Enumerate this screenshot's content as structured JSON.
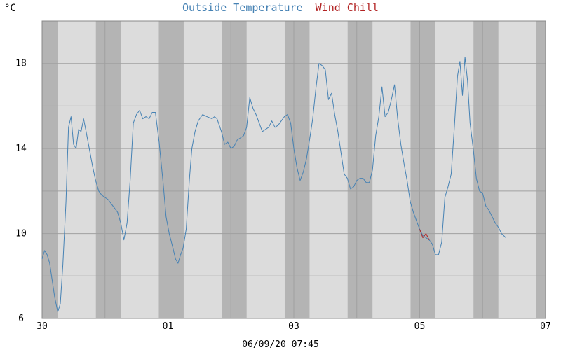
{
  "chart_data": {
    "type": "line",
    "title_parts": [
      {
        "text": "Outside Temperature",
        "color": "#4682b4"
      },
      {
        "text": "Wind Chill",
        "color": "#b22222"
      }
    ],
    "y_unit_label": "°C",
    "x_tick_labels": [
      "30",
      "01",
      "03",
      "05",
      "07"
    ],
    "y_tick_labels": [
      "6",
      "10",
      "14",
      "18"
    ],
    "ylim": [
      6,
      20
    ],
    "y_gridlines": [
      6,
      8,
      10,
      12,
      14,
      16,
      18
    ],
    "footer": "06/09/20 07:45",
    "grid": true,
    "colors": {
      "plot_background": "#dcdcdc",
      "night_band": "#b4b4b4",
      "gridline": "#a0a0a0",
      "outside_temperature": "#4682b4",
      "wind_chill": "#b22222"
    },
    "series": [
      {
        "name": "Outside Temperature",
        "color": "#4682b4",
        "points": [
          [
            0.0,
            8.8
          ],
          [
            0.04,
            9.2
          ],
          [
            0.08,
            9.0
          ],
          [
            0.12,
            8.6
          ],
          [
            0.16,
            7.8
          ],
          [
            0.2,
            7.0
          ],
          [
            0.25,
            6.3
          ],
          [
            0.29,
            6.7
          ],
          [
            0.33,
            8.5
          ],
          [
            0.38,
            11.5
          ],
          [
            0.42,
            15.0
          ],
          [
            0.46,
            15.5
          ],
          [
            0.5,
            14.2
          ],
          [
            0.54,
            14.0
          ],
          [
            0.58,
            14.9
          ],
          [
            0.62,
            14.8
          ],
          [
            0.66,
            15.4
          ],
          [
            0.7,
            14.8
          ],
          [
            0.75,
            14.0
          ],
          [
            0.8,
            13.2
          ],
          [
            0.85,
            12.5
          ],
          [
            0.9,
            12.0
          ],
          [
            0.95,
            11.8
          ],
          [
            1.0,
            11.7
          ],
          [
            1.05,
            11.6
          ],
          [
            1.1,
            11.4
          ],
          [
            1.15,
            11.2
          ],
          [
            1.2,
            11.0
          ],
          [
            1.25,
            10.5
          ],
          [
            1.3,
            9.7
          ],
          [
            1.35,
            10.5
          ],
          [
            1.4,
            12.5
          ],
          [
            1.45,
            15.2
          ],
          [
            1.5,
            15.6
          ],
          [
            1.55,
            15.8
          ],
          [
            1.6,
            15.4
          ],
          [
            1.65,
            15.5
          ],
          [
            1.7,
            15.4
          ],
          [
            1.75,
            15.7
          ],
          [
            1.8,
            15.7
          ],
          [
            1.86,
            14.3
          ],
          [
            1.92,
            12.5
          ],
          [
            1.97,
            10.8
          ],
          [
            2.02,
            10.0
          ],
          [
            2.08,
            9.3
          ],
          [
            2.12,
            8.8
          ],
          [
            2.16,
            8.6
          ],
          [
            2.2,
            9.0
          ],
          [
            2.24,
            9.3
          ],
          [
            2.29,
            10.2
          ],
          [
            2.34,
            12.5
          ],
          [
            2.38,
            14.0
          ],
          [
            2.43,
            14.8
          ],
          [
            2.48,
            15.3
          ],
          [
            2.55,
            15.6
          ],
          [
            2.62,
            15.5
          ],
          [
            2.7,
            15.4
          ],
          [
            2.74,
            15.5
          ],
          [
            2.78,
            15.4
          ],
          [
            2.85,
            14.8
          ],
          [
            2.9,
            14.2
          ],
          [
            2.95,
            14.3
          ],
          [
            3.0,
            14.0
          ],
          [
            3.05,
            14.1
          ],
          [
            3.1,
            14.4
          ],
          [
            3.15,
            14.5
          ],
          [
            3.2,
            14.6
          ],
          [
            3.25,
            15.0
          ],
          [
            3.3,
            16.4
          ],
          [
            3.35,
            15.9
          ],
          [
            3.4,
            15.6
          ],
          [
            3.45,
            15.2
          ],
          [
            3.5,
            14.8
          ],
          [
            3.55,
            14.9
          ],
          [
            3.6,
            15.0
          ],
          [
            3.65,
            15.3
          ],
          [
            3.7,
            15.0
          ],
          [
            3.75,
            15.1
          ],
          [
            3.8,
            15.3
          ],
          [
            3.85,
            15.5
          ],
          [
            3.9,
            15.6
          ],
          [
            3.95,
            15.2
          ],
          [
            4.0,
            14.0
          ],
          [
            4.05,
            13.1
          ],
          [
            4.1,
            12.5
          ],
          [
            4.15,
            12.9
          ],
          [
            4.2,
            13.5
          ],
          [
            4.25,
            14.4
          ],
          [
            4.3,
            15.4
          ],
          [
            4.35,
            16.8
          ],
          [
            4.4,
            18.0
          ],
          [
            4.45,
            17.9
          ],
          [
            4.5,
            17.7
          ],
          [
            4.55,
            16.3
          ],
          [
            4.6,
            16.6
          ],
          [
            4.65,
            15.6
          ],
          [
            4.7,
            14.8
          ],
          [
            4.75,
            13.8
          ],
          [
            4.8,
            12.8
          ],
          [
            4.85,
            12.6
          ],
          [
            4.9,
            12.1
          ],
          [
            4.95,
            12.2
          ],
          [
            5.0,
            12.5
          ],
          [
            5.05,
            12.6
          ],
          [
            5.1,
            12.6
          ],
          [
            5.15,
            12.4
          ],
          [
            5.2,
            12.4
          ],
          [
            5.25,
            13.0
          ],
          [
            5.3,
            14.6
          ],
          [
            5.35,
            15.5
          ],
          [
            5.4,
            16.9
          ],
          [
            5.45,
            15.5
          ],
          [
            5.5,
            15.7
          ],
          [
            5.55,
            16.3
          ],
          [
            5.6,
            17.0
          ],
          [
            5.65,
            15.4
          ],
          [
            5.7,
            14.2
          ],
          [
            5.75,
            13.3
          ],
          [
            5.8,
            12.5
          ],
          [
            5.85,
            11.5
          ],
          [
            5.9,
            11.0
          ],
          [
            5.95,
            10.6
          ],
          [
            6.0,
            10.2
          ],
          [
            6.05,
            9.9
          ],
          [
            6.1,
            9.8
          ],
          [
            6.15,
            9.7
          ],
          [
            6.2,
            9.5
          ],
          [
            6.25,
            9.0
          ],
          [
            6.3,
            9.0
          ],
          [
            6.35,
            9.6
          ],
          [
            6.4,
            11.7
          ],
          [
            6.45,
            12.2
          ],
          [
            6.5,
            12.8
          ],
          [
            6.55,
            15.0
          ],
          [
            6.6,
            17.4
          ],
          [
            6.64,
            18.1
          ],
          [
            6.68,
            16.5
          ],
          [
            6.72,
            18.3
          ],
          [
            6.76,
            17.2
          ],
          [
            6.8,
            15.2
          ],
          [
            6.85,
            14.0
          ],
          [
            6.9,
            12.6
          ],
          [
            6.95,
            12.0
          ],
          [
            7.0,
            11.9
          ],
          [
            7.05,
            11.3
          ],
          [
            7.1,
            11.1
          ],
          [
            7.15,
            10.8
          ],
          [
            7.2,
            10.5
          ],
          [
            7.25,
            10.3
          ],
          [
            7.3,
            10.0
          ],
          [
            7.37,
            9.8
          ]
        ]
      },
      {
        "name": "Wind Chill",
        "color": "#b22222",
        "points": [
          [
            6.0,
            10.2
          ],
          [
            6.05,
            9.8
          ],
          [
            6.1,
            10.0
          ],
          [
            6.15,
            9.7
          ]
        ]
      }
    ]
  }
}
